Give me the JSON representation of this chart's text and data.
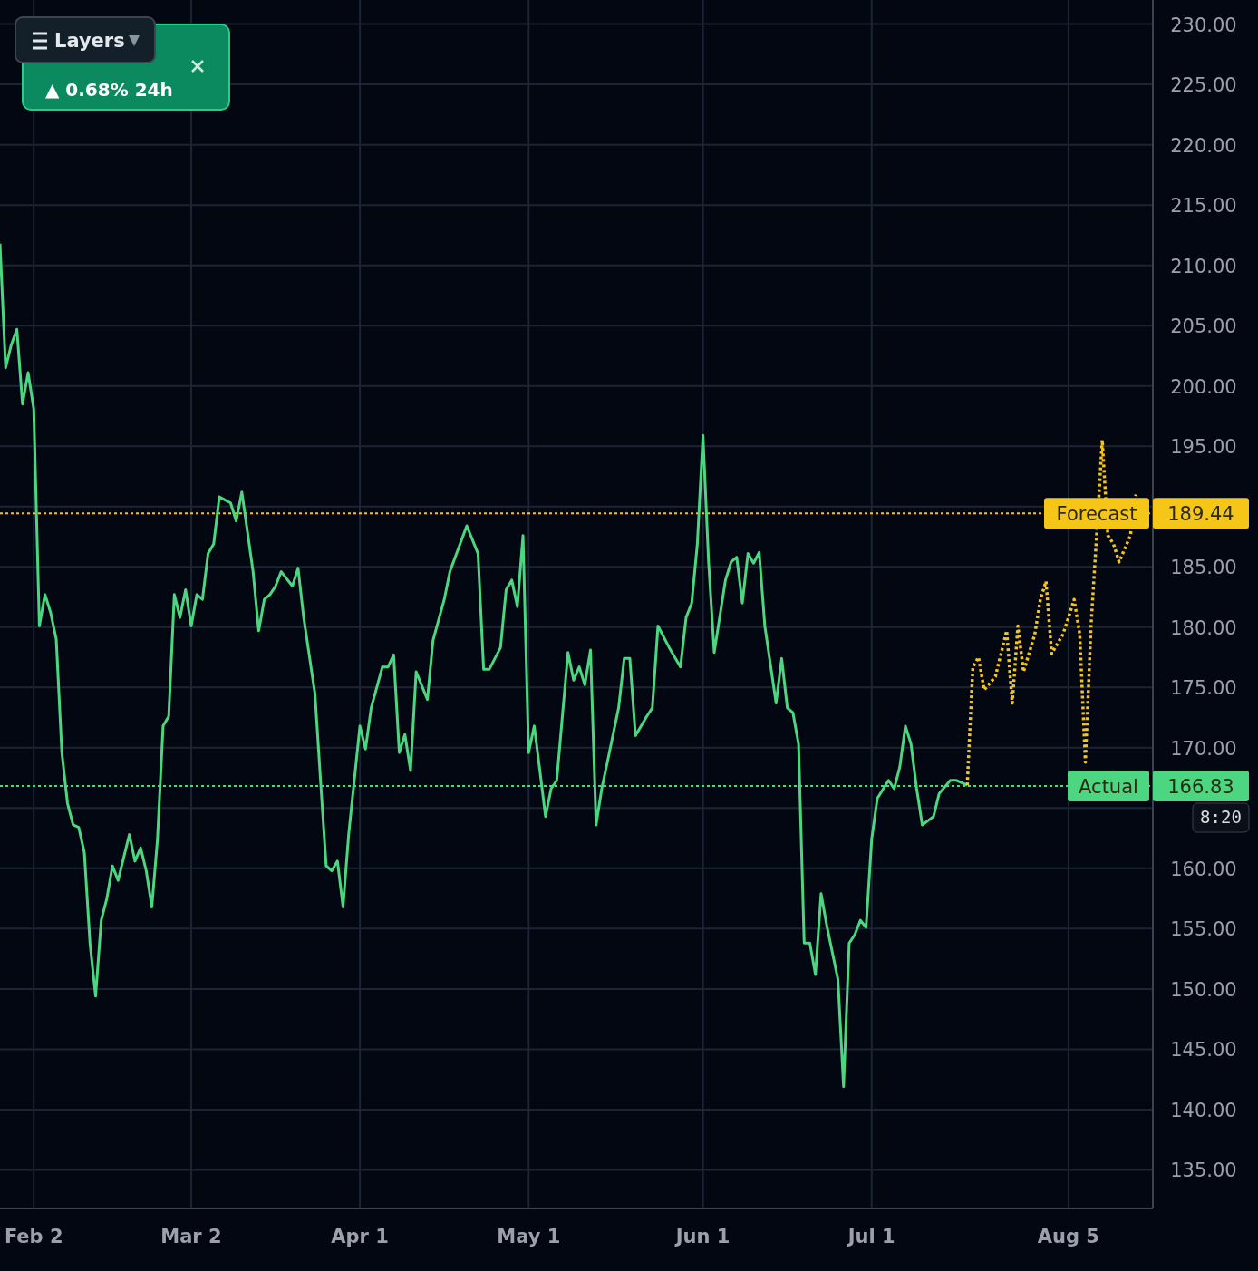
{
  "chart_data": {
    "type": "line",
    "xlim": [
      "--01-27",
      "--08-20"
    ],
    "ylim": [
      131.8,
      232
    ],
    "xticks": [
      {
        "value": "--02-02",
        "label": "Feb 2"
      },
      {
        "value": "--03-02",
        "label": "Mar 2"
      },
      {
        "value": "--04-01",
        "label": "Apr 1"
      },
      {
        "value": "--05-01",
        "label": "May 1"
      },
      {
        "value": "--06-01",
        "label": "Jun 1"
      },
      {
        "value": "--07-01",
        "label": "Jul 1"
      },
      {
        "value": "--08-05",
        "label": "Aug 5"
      }
    ],
    "yticks": [
      {
        "value": 135,
        "label": "135.00"
      },
      {
        "value": 140,
        "label": "140.00"
      },
      {
        "value": 145,
        "label": "145.00"
      },
      {
        "value": 150,
        "label": "150.00"
      },
      {
        "value": 155,
        "label": "155.00"
      },
      {
        "value": 160,
        "label": "160.00"
      },
      {
        "value": 165,
        "label": null
      },
      {
        "value": 170,
        "label": "170.00"
      },
      {
        "value": 175,
        "label": "175.00"
      },
      {
        "value": 180,
        "label": "180.00"
      },
      {
        "value": 185,
        "label": "185.00"
      },
      {
        "value": 190,
        "label": null
      },
      {
        "value": 195,
        "label": "195.00"
      },
      {
        "value": 200,
        "label": "200.00"
      },
      {
        "value": 205,
        "label": "205.00"
      },
      {
        "value": 210,
        "label": "210.00"
      },
      {
        "value": 215,
        "label": "215.00"
      },
      {
        "value": 220,
        "label": "220.00"
      },
      {
        "value": 225,
        "label": "225.00"
      },
      {
        "value": 230,
        "label": "230.00"
      }
    ],
    "grid": true,
    "series": [
      {
        "color": "#4cd681",
        "line_style": "solid",
        "x": [
          "--01-27",
          "--01-28",
          "--01-29",
          "--01-30",
          "--01-31",
          "--02-01",
          "--02-02",
          "--02-03",
          "--02-04",
          "--02-05",
          "--02-06",
          "--02-07",
          "--02-08",
          "--02-09",
          "--02-10",
          "--02-11",
          "--02-12",
          "--02-13",
          "--02-14",
          "--02-15",
          "--02-16",
          "--02-17",
          "--02-19",
          "--02-20",
          "--02-21",
          "--02-22",
          "--02-23",
          "--02-24",
          "--02-25",
          "--02-26",
          "--02-27",
          "--02-28",
          "--03-01",
          "--03-02",
          "--03-03",
          "--03-04",
          "--03-05",
          "--03-06",
          "--03-07",
          "--03-09",
          "--03-10",
          "--03-11",
          "--03-13",
          "--03-14",
          "--03-15",
          "--03-16",
          "--03-17",
          "--03-18",
          "--03-20",
          "--03-21",
          "--03-22",
          "--03-24",
          "--03-25",
          "--03-26",
          "--03-27",
          "--03-28",
          "--03-29",
          "--03-30",
          "--03-31",
          "--04-01",
          "--04-02",
          "--04-03",
          "--04-05",
          "--04-06",
          "--04-07",
          "--04-08",
          "--04-09",
          "--04-10",
          "--04-11",
          "--04-13",
          "--04-14",
          "--04-16",
          "--04-17",
          "--04-20",
          "--04-22",
          "--04-23",
          "--04-24",
          "--04-26",
          "--04-27",
          "--04-28",
          "--04-29",
          "--04-30",
          "--05-01",
          "--05-02",
          "--05-03",
          "--05-04",
          "--05-05",
          "--05-06",
          "--05-08",
          "--05-09",
          "--05-10",
          "--05-11",
          "--05-12",
          "--05-13",
          "--05-14",
          "--05-15",
          "--05-17",
          "--05-18",
          "--05-19",
          "--05-20",
          "--05-22",
          "--05-23",
          "--05-24",
          "--05-26",
          "--05-28",
          "--05-29",
          "--05-30",
          "--05-31",
          "--06-01",
          "--06-02",
          "--06-03",
          "--06-05",
          "--06-06",
          "--06-07",
          "--06-08",
          "--06-09",
          "--06-10",
          "--06-11",
          "--06-12",
          "--06-14",
          "--06-15",
          "--06-16",
          "--06-17",
          "--06-18",
          "--06-19",
          "--06-20",
          "--06-21",
          "--06-22",
          "--06-23",
          "--06-25",
          "--06-26",
          "--06-27",
          "--06-28",
          "--06-29",
          "--06-30",
          "--07-01",
          "--07-02",
          "--07-04",
          "--07-05",
          "--07-06",
          "--07-07",
          "--07-08",
          "--07-09",
          "--07-10",
          "--07-12",
          "--07-13",
          "--07-15",
          "--07-16",
          "--07-18"
        ],
        "values": [
          211.8,
          201.5,
          203.4,
          204.7,
          198.5,
          201.1,
          198.1,
          180.1,
          182.7,
          181.2,
          179,
          169.6,
          165.4,
          163.6,
          163.4,
          161.3,
          153.8,
          149.4,
          155.7,
          157.5,
          160.2,
          159,
          162.8,
          160.6,
          161.7,
          159.8,
          156.8,
          162.4,
          171.8,
          172.6,
          182.7,
          180.8,
          183.1,
          180.1,
          182.7,
          182.3,
          186.1,
          186.9,
          190.8,
          190.3,
          188.8,
          191.2,
          184.6,
          179.7,
          182.3,
          182.7,
          183.4,
          184.6,
          183.4,
          184.9,
          180.8,
          174.5,
          167.3,
          160.2,
          159.8,
          160.6,
          156.8,
          162.8,
          167.3,
          171.8,
          169.9,
          173.3,
          176.7,
          176.7,
          177.7,
          169.6,
          171.1,
          168.1,
          176.3,
          174,
          178.9,
          182.3,
          184.6,
          188.4,
          186.1,
          176.5,
          176.5,
          178.3,
          183.1,
          183.9,
          181.7,
          187.6,
          169.6,
          171.8,
          168.1,
          164.3,
          166.6,
          167.3,
          177.9,
          175.6,
          176.7,
          175.2,
          178.1,
          163.6,
          166.6,
          168.8,
          173.3,
          177.4,
          177.4,
          171,
          172.6,
          173.3,
          180.1,
          178.3,
          176.7,
          180.8,
          182,
          186.9,
          195.9,
          185.4,
          177.9,
          183.9,
          185.4,
          185.8,
          182,
          186.1,
          185.3,
          186.2,
          180.1,
          173.7,
          177.4,
          173.3,
          172.9,
          170.3,
          153.8,
          153.8,
          151.2,
          157.9,
          155.3,
          150.8,
          141.9,
          153.8,
          154.5,
          155.7,
          155.1,
          162.4,
          165.8,
          167.3,
          166.6,
          168.4,
          171.8,
          170.3,
          166.6,
          163.6,
          164.3,
          166.2,
          167.3,
          167.3,
          166.9
        ]
      },
      {
        "color": "#f5c518",
        "line_style": "dotted",
        "x": [
          "--07-18",
          "--07-19",
          "--07-20",
          "--07-21",
          "--07-23",
          "--07-24",
          "--07-25",
          "--07-26",
          "--07-27",
          "--07-28",
          "--07-30",
          "--07-31",
          "--08-01",
          "--08-02",
          "--08-04",
          "--08-05",
          "--08-06",
          "--08-07",
          "--08-08",
          "--08-09",
          "--08-10",
          "--08-11",
          "--08-12",
          "--08-13",
          "--08-14",
          "--08-16",
          "--08-17"
        ],
        "values": [
          166.9,
          176.7,
          177.5,
          174.8,
          175.9,
          177.8,
          179.7,
          173.7,
          180.1,
          176.3,
          179.4,
          182.3,
          183.8,
          177.8,
          179.4,
          180.8,
          182.3,
          179.4,
          168.8,
          180.1,
          187.6,
          195.5,
          187.6,
          186.9,
          185.4,
          187.6,
          191
        ]
      }
    ],
    "ref_lines": [
      {
        "axis": "y",
        "value": 189.44,
        "label": "Forecast",
        "color": "#f5c518",
        "line_style": "dotted"
      },
      {
        "axis": "y",
        "value": 166.83,
        "label": "Actual",
        "color": "#4cd681",
        "line_style": "dotted"
      }
    ],
    "annotations": [
      "Layers",
      "▲ 0.68% 24h",
      "8:20",
      "189.44",
      "166.83"
    ]
  }
}
